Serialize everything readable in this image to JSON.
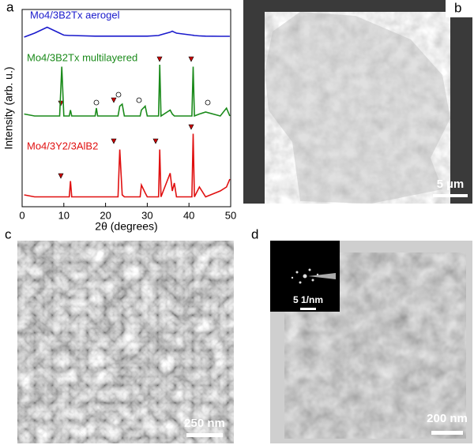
{
  "chart_data": {
    "type": "line",
    "xlabel": "2θ (degrees)",
    "ylabel": "Intensity (arb. u.)",
    "xlim": [
      0,
      50
    ],
    "xticks": [
      0,
      10,
      20,
      30,
      40,
      50
    ],
    "ylim": [
      0,
      100
    ],
    "grid": false,
    "x": [
      0.5,
      3,
      6,
      9,
      9.5,
      10,
      11.3,
      11.6,
      11.9,
      17.5,
      17.8,
      18.1,
      23,
      23.4,
      24,
      24.5,
      28.3,
      28.6,
      29.5,
      30,
      32.7,
      33,
      33.3,
      35.5,
      36,
      36.5,
      37,
      40.7,
      41,
      41.3,
      42.5,
      44,
      47.5,
      49,
      49.8
    ],
    "series": [
      {
        "name": "Mo4/3B2Tx aerogel",
        "color": "#1a1acc",
        "values": [
          86,
          88,
          91,
          88,
          87.5,
          87,
          86.8,
          86.8,
          86.8,
          86.5,
          86.5,
          86.5,
          86.5,
          86.5,
          86.5,
          86.5,
          86.5,
          86.5,
          86.5,
          86.5,
          86.8,
          87,
          87.2,
          88.5,
          89,
          88.5,
          88,
          87,
          86.9,
          86.8,
          86.6,
          86.5,
          86.4,
          86.4,
          86.4
        ]
      },
      {
        "name": "Mo4/3B2Tx multilayered",
        "color": "#1a8a1a",
        "values": [
          47,
          46,
          46,
          46,
          71,
          46,
          46,
          49,
          46,
          46,
          50,
          46,
          46,
          51,
          52,
          46,
          46,
          49,
          51,
          46,
          46,
          72,
          46,
          49,
          47,
          46,
          46,
          46,
          71,
          46,
          47,
          48,
          46,
          50,
          46
        ]
      },
      {
        "name": "Mo4/3Y2/3AlB2",
        "color": "#e01010",
        "values": [
          6,
          5,
          5,
          5,
          5,
          5,
          5,
          13,
          5,
          5,
          5,
          5,
          5,
          29,
          6,
          5,
          5,
          11,
          7,
          5,
          5,
          29,
          5,
          17,
          8,
          12,
          5,
          5,
          37,
          5,
          10,
          5,
          8,
          10,
          14
        ]
      }
    ]
  },
  "panel_labels": [
    "a",
    "b",
    "c",
    "d"
  ],
  "scale_bars": [
    "5 µm",
    "250 nm",
    "200 nm",
    "5 1/nm"
  ]
}
